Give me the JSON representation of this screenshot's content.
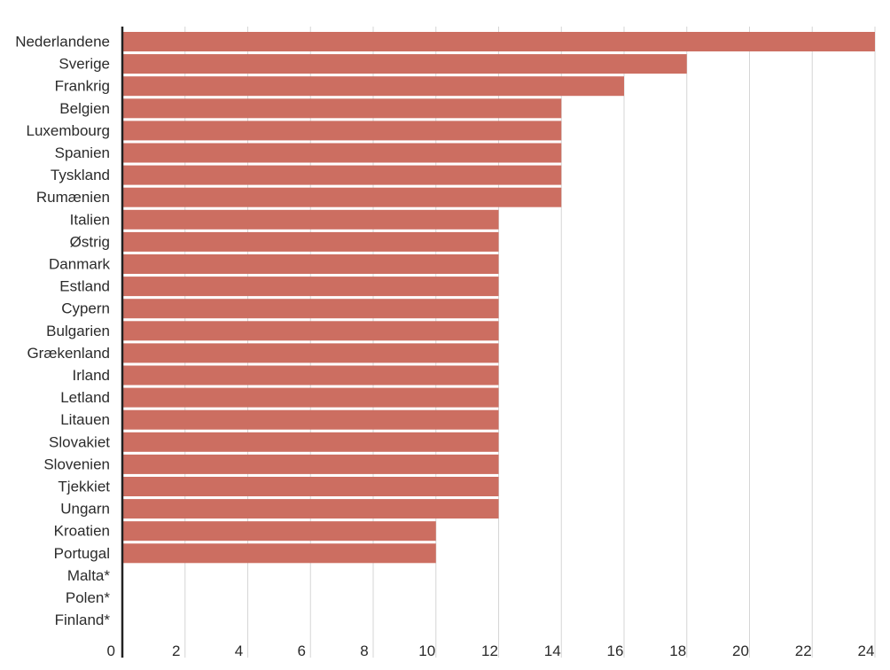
{
  "chart_data": {
    "type": "bar",
    "orientation": "horizontal",
    "title": "",
    "xlabel": "",
    "ylabel": "",
    "categories": [
      "Nederlandene",
      "Sverige",
      "Frankrig",
      "Belgien",
      "Luxembourg",
      "Spanien",
      "Tyskland",
      "Rumænien",
      "Italien",
      "Østrig",
      "Danmark",
      "Estland",
      "Cypern",
      "Bulgarien",
      "Grækenland",
      "Irland",
      "Letland",
      "Litauen",
      "Slovakiet",
      "Slovenien",
      "Tjekkiet",
      "Ungarn",
      "Kroatien",
      "Portugal",
      "Malta*",
      "Polen*",
      "Finland*"
    ],
    "values": [
      24,
      18,
      16,
      14,
      14,
      14,
      14,
      14,
      12,
      12,
      12,
      12,
      12,
      12,
      12,
      12,
      12,
      12,
      12,
      12,
      12,
      12,
      10,
      10,
      0,
      0,
      0
    ],
    "xlim": [
      0,
      24
    ],
    "xticks": [
      0,
      2,
      4,
      6,
      8,
      10,
      12,
      14,
      16,
      18,
      20,
      22,
      24
    ],
    "grid": true,
    "legend": "none",
    "colors": {
      "bar": "#cc6e61",
      "grid": "#d6d6d6",
      "axis": "#222222",
      "text": "#2b2b2b"
    }
  }
}
